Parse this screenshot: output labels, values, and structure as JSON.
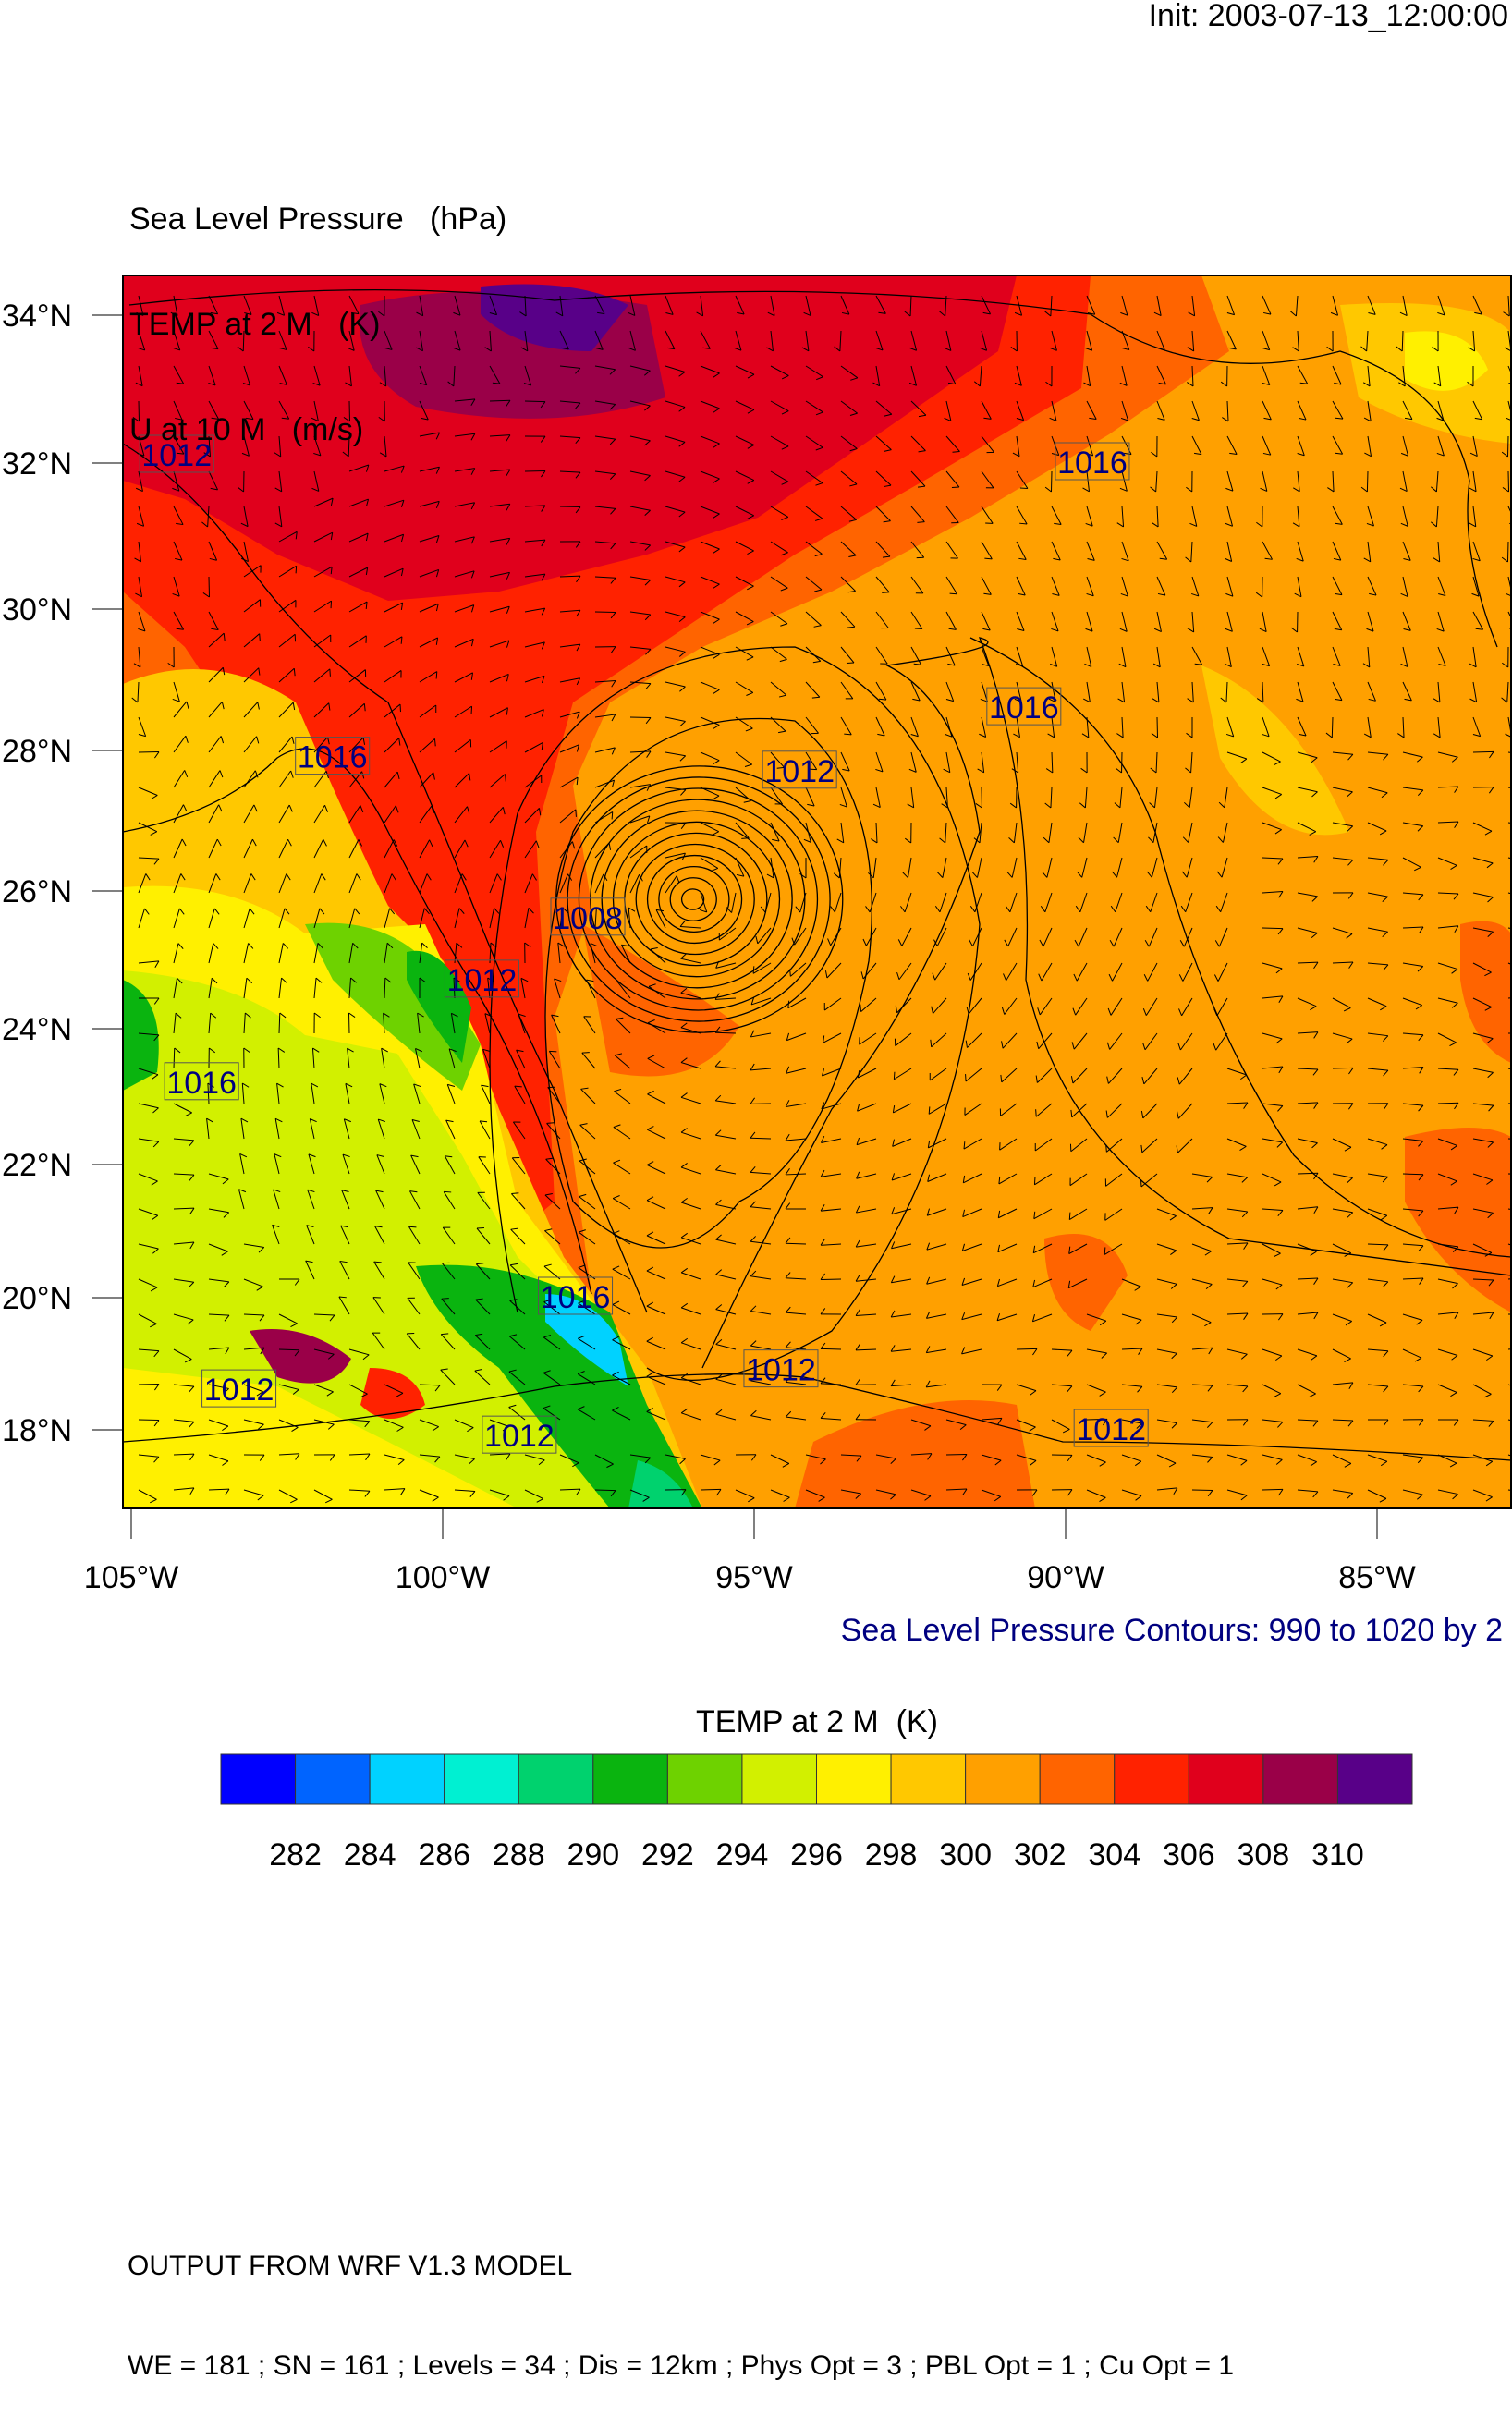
{
  "init_label": "Init: 2003-07-13_12:00:00",
  "titles": [
    "Sea Level Pressure   (hPa)",
    "TEMP at 2 M   (K)",
    "U at 10 M   (m/s)"
  ],
  "contour_note": "Sea Level Pressure Contours: 990 to 1020 by 2",
  "footer": [
    "OUTPUT FROM WRF V1.3 MODEL",
    "WE = 181 ; SN = 161 ; Levels = 34 ; Dis = 12km ; Phys Opt = 3 ; PBL Opt = 1 ; Cu Opt = 1"
  ],
  "chart_data": {
    "type": "heatmap",
    "fields": [
      "Sea Level Pressure   (hPa)",
      "TEMP at 2 M   (K)",
      "U at 10 M   (m/s)"
    ],
    "x_ticks": [
      "105°W",
      "100°W",
      "95°W",
      "90°W",
      "85°W"
    ],
    "y_ticks": [
      "34°N",
      "32°N",
      "30°N",
      "28°N",
      "26°N",
      "24°N",
      "22°N",
      "20°N",
      "18°N"
    ],
    "contour_range": {
      "min": 990,
      "max": 1020,
      "step": 2
    },
    "contour_labels": [
      {
        "text": "1012",
        "lon": -104.3,
        "lat": 32.1
      },
      {
        "text": "1016",
        "lon": -89.6,
        "lat": 32.0
      },
      {
        "text": "1016",
        "lon": -90.7,
        "lat": 28.6
      },
      {
        "text": "1012",
        "lon": -94.3,
        "lat": 27.7
      },
      {
        "text": "1016",
        "lon": -101.8,
        "lat": 27.9
      },
      {
        "text": "1008",
        "lon": -97.7,
        "lat": 25.6
      },
      {
        "text": "1012",
        "lon": -99.4,
        "lat": 24.7
      },
      {
        "text": "1016",
        "lon": -103.9,
        "lat": 23.2
      },
      {
        "text": "1016",
        "lon": -97.9,
        "lat": 20.0
      },
      {
        "text": "1012",
        "lon": -103.3,
        "lat": 18.6
      },
      {
        "text": "1012",
        "lon": -94.6,
        "lat": 18.9
      },
      {
        "text": "1012",
        "lon": -98.8,
        "lat": 17.9
      },
      {
        "text": "1012",
        "lon": -89.3,
        "lat": 18.0
      }
    ],
    "colorbar": {
      "title": "TEMP at 2 M  (K)",
      "labels": [
        "282",
        "284",
        "286",
        "288",
        "290",
        "292",
        "294",
        "296",
        "298",
        "300",
        "302",
        "304",
        "306",
        "308",
        "310"
      ],
      "colors": [
        "#0000ff",
        "#0064ff",
        "#00d2ff",
        "#00f0d2",
        "#00d26e",
        "#0ab40f",
        "#6ed200",
        "#d2f000",
        "#fff000",
        "#ffc800",
        "#ffa000",
        "#ff6400",
        "#ff2200",
        "#e0001c",
        "#9a0048",
        "#580088"
      ]
    }
  }
}
